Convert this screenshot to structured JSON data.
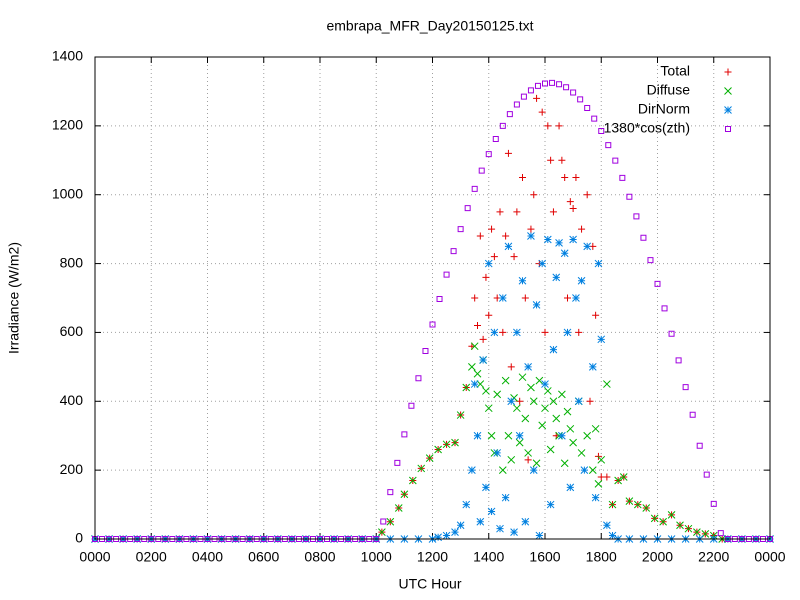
{
  "chart_data": {
    "type": "scatter",
    "title": "embrapa_MFR_Day20150125.txt",
    "x_label": "UTC Hour",
    "y_label": "Irradiance (W/m2)",
    "xlim": [
      0,
      24
    ],
    "ylim": [
      0,
      1400
    ],
    "xticks": [
      {
        "value": 0,
        "label": "0000"
      },
      {
        "value": 2,
        "label": "0200"
      },
      {
        "value": 4,
        "label": "0400"
      },
      {
        "value": 6,
        "label": "0600"
      },
      {
        "value": 8,
        "label": "0800"
      },
      {
        "value": 10,
        "label": "1000"
      },
      {
        "value": 12,
        "label": "1200"
      },
      {
        "value": 14,
        "label": "1400"
      },
      {
        "value": 16,
        "label": "1600"
      },
      {
        "value": 18,
        "label": "1800"
      },
      {
        "value": 20,
        "label": "2000"
      },
      {
        "value": 22,
        "label": "2200"
      },
      {
        "value": 24,
        "label": "0000"
      }
    ],
    "yticks": [
      0,
      200,
      400,
      600,
      800,
      1000,
      1200,
      1400
    ],
    "grid": true,
    "legend": "top-right",
    "series": [
      {
        "name": "Total",
        "color": "#e00000",
        "marker": "plus",
        "x": [
          0,
          0.5,
          1,
          1.5,
          2,
          2.5,
          3,
          3.5,
          4,
          4.5,
          5,
          5.5,
          6,
          6.5,
          7,
          7.5,
          8,
          8.5,
          9,
          9.5,
          10,
          10.2,
          10.5,
          10.8,
          11,
          11.3,
          11.6,
          11.9,
          12.2,
          12.5,
          12.8,
          13,
          13.2,
          13.4,
          13.5,
          13.6,
          13.7,
          13.8,
          13.9,
          14,
          14.1,
          14.2,
          14.3,
          14.4,
          14.5,
          14.6,
          14.7,
          14.8,
          14.9,
          15,
          15.1,
          15.2,
          15.3,
          15.4,
          15.5,
          15.6,
          15.7,
          15.8,
          15.9,
          16,
          16.1,
          16.2,
          16.3,
          16.4,
          16.5,
          16.6,
          16.7,
          16.8,
          16.9,
          17,
          17.1,
          17.2,
          17.3,
          17.5,
          17.6,
          17.7,
          17.8,
          17.9,
          18,
          18.2,
          18.4,
          18.6,
          18.8,
          19,
          19.3,
          19.6,
          19.9,
          20.2,
          20.5,
          20.8,
          21.1,
          21.4,
          21.7,
          22,
          22.3,
          22.5,
          23,
          23.5,
          24
        ],
        "values": [
          0,
          0,
          0,
          0,
          0,
          0,
          0,
          0,
          0,
          0,
          0,
          0,
          0,
          0,
          0,
          0,
          0,
          0,
          0,
          0,
          0,
          20,
          50,
          90,
          130,
          170,
          205,
          235,
          260,
          275,
          280,
          360,
          440,
          560,
          700,
          620,
          880,
          580,
          760,
          650,
          900,
          820,
          700,
          950,
          600,
          880,
          1120,
          500,
          820,
          950,
          400,
          1050,
          700,
          230,
          900,
          1000,
          1280,
          800,
          1240,
          600,
          1200,
          1100,
          950,
          300,
          1200,
          1100,
          1050,
          700,
          980,
          960,
          1050,
          600,
          900,
          1000,
          400,
          850,
          650,
          240,
          180,
          180,
          100,
          170,
          180,
          110,
          100,
          90,
          60,
          50,
          70,
          40,
          30,
          20,
          15,
          10,
          0,
          0,
          0,
          0,
          0
        ]
      },
      {
        "name": "Diffuse",
        "color": "#00b000",
        "marker": "cross",
        "x": [
          0,
          0.5,
          1,
          1.5,
          2,
          2.5,
          3,
          3.5,
          4,
          4.5,
          5,
          5.5,
          6,
          6.5,
          7,
          7.5,
          8,
          8.5,
          9,
          9.5,
          10,
          10.2,
          10.5,
          10.8,
          11,
          11.3,
          11.6,
          11.9,
          12.2,
          12.5,
          12.8,
          13,
          13.2,
          13.4,
          13.5,
          13.6,
          13.7,
          13.8,
          13.9,
          14,
          14.1,
          14.2,
          14.3,
          14.5,
          14.6,
          14.7,
          14.8,
          14.9,
          15,
          15.1,
          15.2,
          15.3,
          15.4,
          15.5,
          15.6,
          15.7,
          15.8,
          15.9,
          16,
          16.1,
          16.2,
          16.3,
          16.4,
          16.5,
          16.6,
          16.7,
          16.8,
          16.9,
          17,
          17.2,
          17.3,
          17.5,
          17.7,
          17.8,
          17.9,
          18,
          18.2,
          18.4,
          18.6,
          18.8,
          19,
          19.3,
          19.6,
          19.9,
          20.2,
          20.5,
          20.8,
          21.1,
          21.4,
          21.7,
          22,
          22.3,
          22.5,
          23,
          23.5,
          24
        ],
        "values": [
          0,
          0,
          0,
          0,
          0,
          0,
          0,
          0,
          0,
          0,
          0,
          0,
          0,
          0,
          0,
          0,
          0,
          0,
          0,
          0,
          0,
          20,
          50,
          90,
          130,
          170,
          205,
          235,
          260,
          275,
          280,
          360,
          440,
          500,
          560,
          480,
          450,
          520,
          430,
          380,
          300,
          250,
          420,
          200,
          460,
          300,
          230,
          410,
          380,
          280,
          470,
          350,
          250,
          440,
          400,
          220,
          460,
          330,
          380,
          430,
          260,
          400,
          350,
          300,
          420,
          220,
          370,
          320,
          280,
          400,
          250,
          300,
          200,
          320,
          160,
          230,
          450,
          100,
          170,
          180,
          110,
          100,
          90,
          60,
          50,
          70,
          40,
          30,
          20,
          15,
          10,
          0,
          0,
          0,
          0,
          0
        ]
      },
      {
        "name": "DirNorm",
        "color": "#0080e0",
        "marker": "star",
        "x": [
          0,
          0.5,
          1,
          1.5,
          2,
          2.5,
          3,
          3.5,
          4,
          4.5,
          5,
          5.5,
          6,
          6.5,
          7,
          7.5,
          8,
          8.5,
          9,
          9.5,
          10,
          10.5,
          11,
          11.5,
          12,
          12.2,
          12.5,
          12.8,
          13,
          13.2,
          13.4,
          13.5,
          13.6,
          13.7,
          13.8,
          13.9,
          14,
          14.1,
          14.2,
          14.3,
          14.4,
          14.5,
          14.6,
          14.7,
          14.8,
          14.9,
          15,
          15.1,
          15.2,
          15.3,
          15.4,
          15.5,
          15.6,
          15.7,
          15.8,
          15.9,
          16,
          16.1,
          16.2,
          16.3,
          16.4,
          16.5,
          16.6,
          16.7,
          16.8,
          16.9,
          17,
          17.1,
          17.2,
          17.3,
          17.4,
          17.5,
          17.7,
          17.8,
          17.9,
          18,
          18.2,
          18.4,
          18.6,
          19,
          19.5,
          20,
          20.5,
          21,
          21.5,
          22,
          22.5,
          23,
          23.5,
          24
        ],
        "values": [
          0,
          0,
          0,
          0,
          0,
          0,
          0,
          0,
          0,
          0,
          0,
          0,
          0,
          0,
          0,
          0,
          0,
          0,
          0,
          0,
          0,
          0,
          0,
          0,
          0,
          5,
          10,
          20,
          40,
          100,
          200,
          450,
          300,
          50,
          520,
          150,
          800,
          80,
          600,
          250,
          30,
          700,
          120,
          850,
          400,
          20,
          600,
          300,
          750,
          50,
          500,
          880,
          200,
          680,
          10,
          800,
          450,
          870,
          100,
          550,
          760,
          860,
          300,
          830,
          600,
          150,
          870,
          700,
          400,
          750,
          200,
          850,
          500,
          120,
          800,
          580,
          40,
          10,
          0,
          0,
          0,
          0,
          0,
          0,
          0,
          0,
          0,
          0,
          0,
          0
        ]
      },
      {
        "name": "1380*cos(zth)",
        "color": "#a000e0",
        "marker": "square",
        "x": [
          0,
          0.25,
          0.5,
          0.75,
          1,
          1.25,
          1.5,
          1.75,
          2,
          2.25,
          2.5,
          2.75,
          3,
          3.25,
          3.5,
          3.75,
          4,
          4.25,
          4.5,
          4.75,
          5,
          5.25,
          5.5,
          5.75,
          6,
          6.25,
          6.5,
          6.75,
          7,
          7.25,
          7.5,
          7.75,
          8,
          8.25,
          8.5,
          8.75,
          9,
          9.25,
          9.5,
          9.75,
          10,
          10.25,
          10.5,
          10.75,
          11,
          11.25,
          11.5,
          11.75,
          12,
          12.25,
          12.5,
          12.75,
          13,
          13.25,
          13.5,
          13.75,
          14,
          14.25,
          14.5,
          14.75,
          15,
          15.25,
          15.5,
          15.75,
          16,
          16.25,
          16.5,
          16.75,
          17,
          17.25,
          17.5,
          17.75,
          18,
          18.25,
          18.5,
          18.75,
          19,
          19.25,
          19.5,
          19.75,
          20,
          20.25,
          20.5,
          20.75,
          21,
          21.25,
          21.5,
          21.75,
          22,
          22.25,
          22.5,
          22.75,
          23,
          23.25,
          23.5,
          23.75,
          24
        ],
        "values": [
          0,
          0,
          0,
          0,
          0,
          0,
          0,
          0,
          0,
          0,
          0,
          0,
          0,
          0,
          0,
          0,
          0,
          0,
          0,
          0,
          0,
          0,
          0,
          0,
          0,
          0,
          0,
          0,
          0,
          0,
          0,
          0,
          0,
          0,
          0,
          0,
          0,
          0,
          0,
          0,
          0,
          51,
          136,
          221,
          304,
          387,
          467,
          546,
          623,
          697,
          768,
          836,
          900,
          961,
          1017,
          1070,
          1118,
          1162,
          1200,
          1234,
          1262,
          1285,
          1303,
          1316,
          1323,
          1325,
          1321,
          1312,
          1297,
          1277,
          1252,
          1221,
          1185,
          1144,
          1099,
          1049,
          994,
          937,
          875,
          810,
          741,
          670,
          596,
          519,
          441,
          361,
          271,
          187,
          102,
          17,
          0,
          0,
          0,
          0,
          0,
          0,
          0
        ]
      }
    ]
  }
}
